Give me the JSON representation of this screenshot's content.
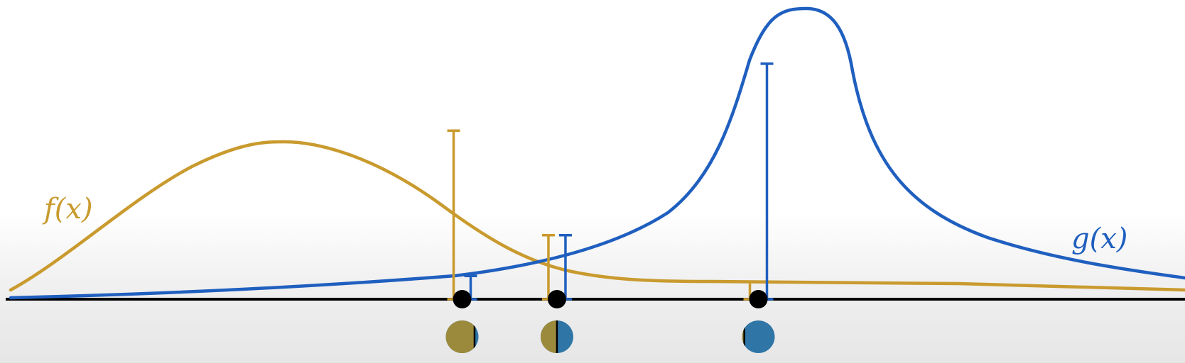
{
  "labels": {
    "f": "f(x)",
    "g": "g(x)"
  },
  "colors": {
    "f": "#c99a2e",
    "g": "#1f5fbf",
    "axis": "#000000",
    "point": "#000000",
    "pie_f": "#9c8a3c",
    "pie_g": "#2f75a6"
  },
  "samples": [
    {
      "x": 0.39,
      "f": 0.58,
      "g": 0.08
    },
    {
      "x": 0.47,
      "f": 0.22,
      "g": 0.22
    },
    {
      "x": 0.64,
      "f": 0.06,
      "g": 0.81
    }
  ]
}
